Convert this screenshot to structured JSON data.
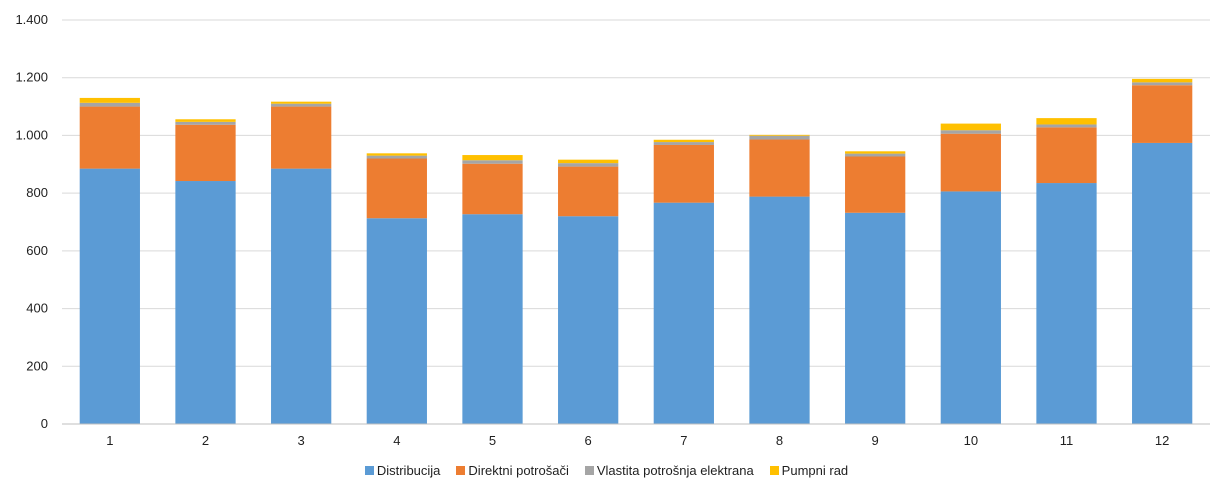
{
  "chart_data": {
    "type": "bar",
    "stacked": true,
    "title": "",
    "xlabel": "",
    "ylabel": "",
    "categories": [
      "1",
      "2",
      "3",
      "4",
      "5",
      "6",
      "7",
      "8",
      "9",
      "10",
      "11",
      "12"
    ],
    "ylim": [
      0,
      1400
    ],
    "yticks": [
      0,
      200,
      400,
      600,
      800,
      1000,
      1200,
      1400
    ],
    "ytick_labels": [
      "0",
      "200",
      "400",
      "600",
      "800",
      "1.000",
      "1.200",
      "1.400"
    ],
    "grid": true,
    "legend_position": "bottom",
    "series": [
      {
        "name": "Distribucija",
        "color": "#5b9bd5",
        "values": [
          885,
          842,
          885,
          713,
          727,
          720,
          767,
          788,
          732,
          806,
          835,
          974
        ]
      },
      {
        "name": "Direktni potrošači",
        "color": "#ed7d31",
        "values": [
          215,
          195,
          215,
          207,
          175,
          172,
          200,
          198,
          195,
          200,
          193,
          200
        ]
      },
      {
        "name": "Vlastita potrošnja elektrana",
        "color": "#a5a5a5",
        "values": [
          13,
          10,
          10,
          10,
          12,
          12,
          10,
          13,
          10,
          12,
          10,
          10
        ]
      },
      {
        "name": "Pumpni rad",
        "color": "#ffc000",
        "values": [
          17,
          9,
          7,
          8,
          18,
          12,
          8,
          3,
          8,
          23,
          22,
          12
        ]
      }
    ]
  }
}
